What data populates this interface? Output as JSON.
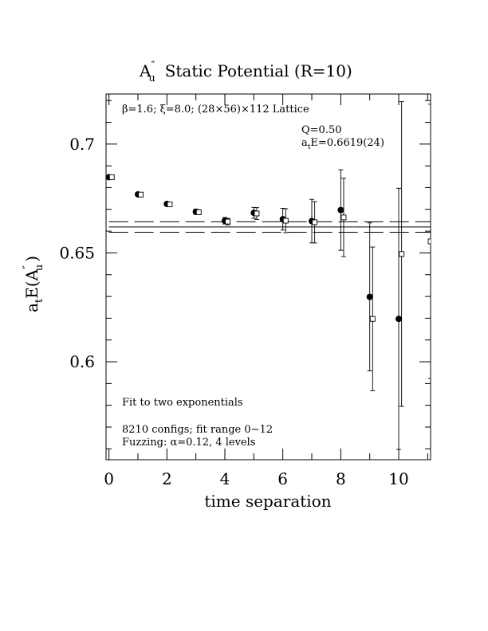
{
  "chart_data": {
    "type": "scatter",
    "title": "A″u  Static Potential (R=10)",
    "title_parts": {
      "main": "A",
      "sup": "″",
      "sub": "u",
      "rest": "Static Potential (R=10)"
    },
    "xlabel": "time separation",
    "ylabel": "atE(A″u)",
    "ylabel_parts": {
      "a": "a",
      "t": "t",
      "E": "E(A",
      "sup": "″",
      "sub": "u",
      "close": ")"
    },
    "xlim": [
      -0.1,
      11.1
    ],
    "ylim": [
      0.555,
      0.723
    ],
    "x_ticks": [
      0,
      2,
      4,
      6,
      8,
      10
    ],
    "x_tick_labels": [
      "0",
      "2",
      "4",
      "6",
      "8",
      "10"
    ],
    "y_ticks": [
      0.6,
      0.65,
      0.7
    ],
    "y_tick_labels": [
      "0.6",
      "0.65",
      "0.7"
    ],
    "annotations": {
      "lattice": "β=1.6; ξ=8.0; (28×56)×112 Lattice",
      "q": "Q=0.50",
      "energy_prefix": "a",
      "energy_sub": "t",
      "energy_rest": "E=0.6619(24)",
      "fit": "Fit to two exponentials",
      "configs": "8210 configs; fit range 0−12",
      "fuzzing": "Fuzzing: α=0.12, 4 levels"
    },
    "fit": {
      "center": 0.6619,
      "error": 0.0024,
      "x_range": [
        0,
        11.1
      ]
    },
    "series": [
      {
        "marker": "filled-circle",
        "points": [
          {
            "x": 0,
            "y": 0.6848,
            "err": 0.0006
          },
          {
            "x": 1,
            "y": 0.6769,
            "err": 0.0008
          },
          {
            "x": 2,
            "y": 0.6725,
            "err": 0.0009
          },
          {
            "x": 3,
            "y": 0.6689,
            "err": 0.0012
          },
          {
            "x": 4,
            "y": 0.6648,
            "err": 0.0015
          },
          {
            "x": 5,
            "y": 0.6684,
            "err": 0.0025
          },
          {
            "x": 6,
            "y": 0.6655,
            "err": 0.005
          },
          {
            "x": 7,
            "y": 0.6646,
            "err": 0.01
          },
          {
            "x": 8,
            "y": 0.6697,
            "err": 0.0185
          },
          {
            "x": 9,
            "y": 0.6298,
            "err": 0.034
          },
          {
            "x": 10,
            "y": 0.6197,
            "err": 0.06
          }
        ]
      },
      {
        "marker": "open-square",
        "x_offset": 0.1,
        "points": [
          {
            "x": 0,
            "y": 0.6848,
            "err": 0.0006
          },
          {
            "x": 1,
            "y": 0.6768,
            "err": 0.0008
          },
          {
            "x": 2,
            "y": 0.6723,
            "err": 0.0009
          },
          {
            "x": 3,
            "y": 0.6687,
            "err": 0.0011
          },
          {
            "x": 4,
            "y": 0.6644,
            "err": 0.0015
          },
          {
            "x": 5,
            "y": 0.6681,
            "err": 0.0027
          },
          {
            "x": 6,
            "y": 0.6648,
            "err": 0.0055
          },
          {
            "x": 7,
            "y": 0.6641,
            "err": 0.0095
          },
          {
            "x": 8,
            "y": 0.6663,
            "err": 0.018
          },
          {
            "x": 9,
            "y": 0.6197,
            "err": 0.033
          },
          {
            "x": 10,
            "y": 0.6495,
            "err": 0.07
          },
          {
            "x": 11,
            "y": 0.6553,
            "err": 0.063
          }
        ]
      }
    ]
  }
}
